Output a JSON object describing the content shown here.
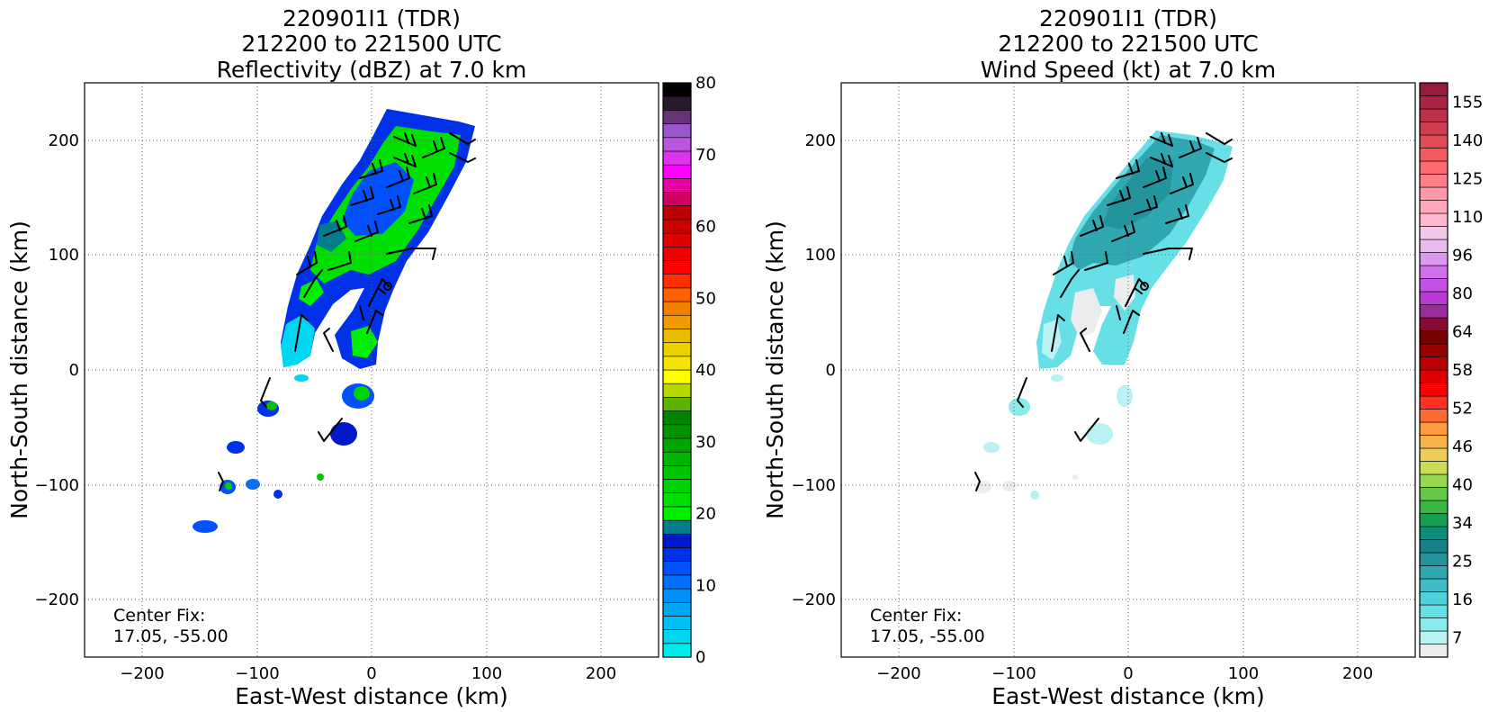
{
  "panels": [
    {
      "title": [
        "220901I1 (TDR)",
        "212200 to 221500 UTC",
        "Reflectivity (dBZ) at 7.0 km"
      ],
      "xlabel": "East-West distance (km)",
      "ylabel": "North-South distance (km)",
      "note": [
        "Center Fix:",
        "17.05, -55.00"
      ],
      "xticks": [
        "−200",
        "−100",
        "0",
        "100",
        "200"
      ],
      "yticks": [
        "200",
        "100",
        "0",
        "−100",
        "−200"
      ],
      "colorbar": {
        "min": 0,
        "max": 80,
        "ticks": [
          {
            "v": 0,
            "t": "0"
          },
          {
            "v": 10,
            "t": "10"
          },
          {
            "v": 20,
            "t": "20"
          },
          {
            "v": 30,
            "t": "30"
          },
          {
            "v": 40,
            "t": "40"
          },
          {
            "v": 50,
            "t": "50"
          },
          {
            "v": 60,
            "t": "60"
          },
          {
            "v": 70,
            "t": "70"
          },
          {
            "v": 80,
            "t": "80"
          }
        ],
        "colors": [
          "#00ecec",
          "#00d6ef",
          "#00bff2",
          "#00a7f5",
          "#0090f8",
          "#0070fb",
          "#0050ff",
          "#0030e8",
          "#0018c8",
          "#007c8c",
          "#00ee00",
          "#00e000",
          "#00d200",
          "#00c400",
          "#00b400",
          "#00a400",
          "#009400",
          "#008400",
          "#5ab400",
          "#b4d800",
          "#ffff00",
          "#f4e400",
          "#ecd000",
          "#e8bc00",
          "#f09c00",
          "#f08000",
          "#ff6000",
          "#ff3000",
          "#ff0000",
          "#ee0000",
          "#dd0000",
          "#cc0000",
          "#bb0000",
          "#d00060",
          "#e800a0",
          "#ff00ff",
          "#dd33ee",
          "#bb55dd",
          "#9955cc",
          "#663377",
          "#2a1a2e",
          "#000000"
        ]
      }
    },
    {
      "title": [
        "220901I1 (TDR)",
        "212200 to 221500 UTC",
        "Wind Speed (kt) at 7.0 km"
      ],
      "xlabel": "East-West distance (km)",
      "ylabel": "North-South distance (km)",
      "note": [
        "Center Fix:",
        "17.05, -55.00"
      ],
      "xticks": [
        "−200",
        "−100",
        "0",
        "100",
        "200"
      ],
      "yticks": [
        "200",
        "100",
        "0",
        "−100",
        "−200"
      ],
      "colorbar": {
        "labels_bottom_up": [
          "7",
          "16",
          "25",
          "34",
          "40",
          "46",
          "52",
          "58",
          "64",
          "80",
          "96",
          "110",
          "125",
          "140",
          "155"
        ],
        "colors": [
          "#ececec",
          "#b8f2f2",
          "#88ecee",
          "#66e0e6",
          "#50d0d8",
          "#40bcc6",
          "#30a8b2",
          "#22949e",
          "#188088",
          "#0e8c7a",
          "#10a050",
          "#38b840",
          "#66c84a",
          "#98d850",
          "#ccdc55",
          "#eed058",
          "#f8b248",
          "#ff9a40",
          "#ff6a30",
          "#ff3020",
          "#ff0000",
          "#dd0000",
          "#bb0000",
          "#990000",
          "#770000",
          "#880a30",
          "#9a2c9a",
          "#b838d8",
          "#c450e6",
          "#d070ea",
          "#dc98ee",
          "#e8baf0",
          "#f4c8e8",
          "#ffb8d0",
          "#ffa8bc",
          "#ff98a8",
          "#ff8088",
          "#ff6c70",
          "#f25a60",
          "#e24a56",
          "#ce3c50",
          "#bc3048",
          "#a82440",
          "#981a3c"
        ]
      }
    }
  ],
  "chart_data": [
    {
      "type": "heatmap",
      "title": "220901I1 (TDR) 212200 to 221500 UTC Reflectivity (dBZ) at 7.0 km",
      "xlabel": "East-West distance (km)",
      "ylabel": "North-South distance (km)",
      "xlim": [
        -250,
        250
      ],
      "ylim": [
        -250,
        250
      ],
      "grid": true,
      "colorbar_label": "Reflectivity (dBZ)",
      "color_range": [
        0,
        80
      ],
      "echo_regions": [
        {
          "region": "main band",
          "x_range": [
            -78,
            90
          ],
          "y_range": [
            6,
            228
          ],
          "typical_dBZ": [
            10,
            28
          ]
        },
        {
          "region": "cell",
          "x": 0,
          "y": -22
        },
        {
          "region": "cell",
          "x": -90,
          "y": -32
        },
        {
          "region": "cell",
          "x": -33,
          "y": -60
        },
        {
          "region": "cell",
          "x": -118,
          "y": -68
        },
        {
          "region": "cell",
          "x": -125,
          "y": -100
        },
        {
          "region": "cell",
          "x": -100,
          "y": -102
        },
        {
          "region": "cell",
          "x": -143,
          "y": -137
        }
      ],
      "wind_barbs": true,
      "center_fix": "17.05, -55.00"
    },
    {
      "type": "heatmap",
      "title": "220901I1 (TDR) 212200 to 221500 UTC Wind Speed (kt) at 7.0 km",
      "xlabel": "East-West distance (km)",
      "ylabel": "North-South distance (km)",
      "xlim": [
        -250,
        250
      ],
      "ylim": [
        -250,
        250
      ],
      "grid": true,
      "colorbar_label": "Wind Speed (kt)",
      "color_range": [
        7,
        155
      ],
      "wind_regions": [
        {
          "region": "main band core",
          "x_range": [
            -60,
            70
          ],
          "y_range": [
            100,
            205
          ],
          "typical_kt": [
            22,
            28
          ]
        },
        {
          "region": "band periphery",
          "x_range": [
            -78,
            90
          ],
          "y_range": [
            6,
            100
          ],
          "typical_kt": [
            10,
            18
          ]
        },
        {
          "region": "scattered echoes",
          "x_range": [
            -130,
            0
          ],
          "y_range": [
            -110,
            -15
          ],
          "typical_kt": [
            7,
            16
          ]
        }
      ],
      "wind_barbs": true,
      "center_fix": "17.05, -55.00"
    }
  ]
}
